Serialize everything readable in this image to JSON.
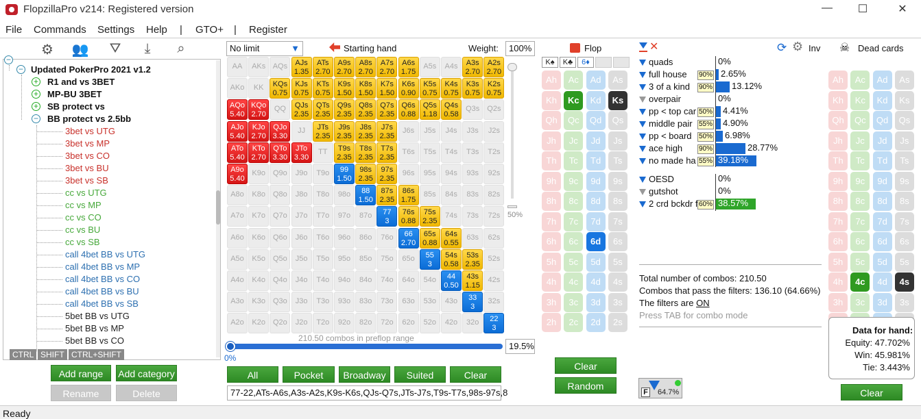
{
  "window": {
    "title": "FlopzillaPro v214: Registered version"
  },
  "menu": [
    "File",
    "Commands",
    "Settings",
    "Help",
    "|",
    "GTO+",
    "|",
    "Register"
  ],
  "tree": {
    "root": "Updated PokerPro 2021 v1.2",
    "groups": [
      "R1 and vs 3BET",
      "MP-BU 3BET",
      "SB protect vs",
      "BB protect vs 2.5bb"
    ],
    "children": [
      {
        "label": "3bet vs UTG",
        "c": "red"
      },
      {
        "label": "3bet vs MP",
        "c": "red"
      },
      {
        "label": "3bet vs CO",
        "c": "red"
      },
      {
        "label": "3bet vs BU",
        "c": "red"
      },
      {
        "label": "3bet vs SB",
        "c": "red"
      },
      {
        "label": "cc vs UTG",
        "c": "grn"
      },
      {
        "label": "cc vs MP",
        "c": "grn"
      },
      {
        "label": "cc vs CO",
        "c": "grn"
      },
      {
        "label": "cc vs BU",
        "c": "grn"
      },
      {
        "label": "cc vs SB",
        "c": "grn"
      },
      {
        "label": "call 4bet BB vs UTG",
        "c": "blu"
      },
      {
        "label": "call 4bet BB vs MP",
        "c": "blu"
      },
      {
        "label": "call 4bet BB vs CO",
        "c": "blu"
      },
      {
        "label": "call 4bet BB vs BU",
        "c": "blu"
      },
      {
        "label": "call 4bet BB vs SB",
        "c": "blu"
      },
      {
        "label": "5bet BB vs UTG",
        "c": "blk"
      },
      {
        "label": "5bet BB vs MP",
        "c": "blk"
      },
      {
        "label": "5bet BB vs CO",
        "c": "blk"
      }
    ],
    "mods": [
      "CTRL",
      "SHIFT",
      "CTRL+SHIFT"
    ]
  },
  "left_buttons": {
    "add_range": "Add range",
    "add_category": "Add category",
    "rename": "Rename",
    "delete": "Delete"
  },
  "range": {
    "limit": "No limit",
    "title": "Starting hand",
    "weight_label": "Weight:",
    "weight": "100%",
    "slider_pct": "50%",
    "combos_text": "210.50 combos in preflop range",
    "pct_left": "0%",
    "pct_box": "19.5%",
    "buttons": [
      "All",
      "Pocket",
      "Broadway",
      "Suited",
      "Clear"
    ],
    "text": "77-22,ATs-A6s,A3s-A2s,K9s-K6s,QJs-Q7s,JTs-J7s,T9s-T7s,98s-97s,8",
    "cells": {
      "AJs": [
        "y",
        "1.35"
      ],
      "ATs": [
        "y",
        "2.70"
      ],
      "A9s": [
        "y",
        "2.70"
      ],
      "A8s": [
        "y",
        "2.70"
      ],
      "A7s": [
        "y",
        "2.70"
      ],
      "A6s": [
        "y",
        "1.75"
      ],
      "A3s": [
        "y",
        "2.70"
      ],
      "A2s": [
        "y",
        "2.70"
      ],
      "KQs": [
        "y",
        "0.75"
      ],
      "KJs": [
        "y",
        "0.75"
      ],
      "KTs": [
        "y",
        "0.75"
      ],
      "K9s": [
        "y",
        "1.50"
      ],
      "K8s": [
        "y",
        "1.50"
      ],
      "K7s": [
        "y",
        "1.50"
      ],
      "K6s": [
        "y",
        "0.90"
      ],
      "K5s": [
        "y",
        "0.75"
      ],
      "K4s": [
        "y",
        "0.75"
      ],
      "K3s": [
        "y",
        "0.75"
      ],
      "K2s": [
        "y",
        "0.75"
      ],
      "AQo": [
        "r",
        "5.40"
      ],
      "KQo": [
        "r",
        "2.70"
      ],
      "QJs": [
        "y",
        "2.35"
      ],
      "QTs": [
        "y",
        "2.35"
      ],
      "Q9s": [
        "y",
        "2.35"
      ],
      "Q8s": [
        "y",
        "2.35"
      ],
      "Q7s": [
        "y",
        "2.35"
      ],
      "Q6s": [
        "y",
        "0.88"
      ],
      "Q5s": [
        "y",
        "1.18"
      ],
      "Q4s": [
        "y",
        "0.58"
      ],
      "AJo": [
        "r",
        "5.40"
      ],
      "KJo": [
        "r",
        "2.70"
      ],
      "QJo": [
        "r",
        "3.30"
      ],
      "JTs": [
        "y",
        "2.35"
      ],
      "J9s": [
        "y",
        "2.35"
      ],
      "J8s": [
        "y",
        "2.35"
      ],
      "J7s": [
        "y",
        "2.35"
      ],
      "ATo": [
        "r",
        "5.40"
      ],
      "KTo": [
        "r",
        "2.70"
      ],
      "QTo": [
        "r",
        "3.30"
      ],
      "JTo": [
        "r",
        "3.30"
      ],
      "T9s": [
        "y",
        "2.35"
      ],
      "T8s": [
        "y",
        "2.35"
      ],
      "T7s": [
        "y",
        "2.35"
      ],
      "A9o": [
        "r",
        "5.40"
      ],
      "99": [
        "b",
        "1.50"
      ],
      "98s": [
        "y",
        "2.35"
      ],
      "97s": [
        "y",
        "2.35"
      ],
      "88": [
        "b",
        "1.50"
      ],
      "87s": [
        "y",
        "2.35"
      ],
      "86s": [
        "y",
        "1.75"
      ],
      "77": [
        "b",
        "3"
      ],
      "76s": [
        "y",
        "0.88"
      ],
      "75s": [
        "y",
        "2.35"
      ],
      "66": [
        "b",
        "2.70"
      ],
      "65s": [
        "y",
        "0.88"
      ],
      "64s": [
        "y",
        "0.55"
      ],
      "55": [
        "b",
        "3"
      ],
      "54s": [
        "y",
        "0.58"
      ],
      "53s": [
        "y",
        "2.35"
      ],
      "44": [
        "b",
        "0.50"
      ],
      "43s": [
        "y",
        "1.15"
      ],
      "33": [
        "b",
        "3"
      ],
      "22": [
        "b",
        "3"
      ]
    }
  },
  "flop": {
    "title": "Flop",
    "board": [
      "K♠",
      "K♣",
      "6♦"
    ],
    "clear": "Clear",
    "random": "Random",
    "selected": [
      "Kc",
      "Ks",
      "6d"
    ]
  },
  "stats": {
    "made": [
      {
        "n": "quads",
        "p": "",
        "v": "0%",
        "bar": 0,
        "icon": "blue"
      },
      {
        "n": "full house",
        "p": "90%",
        "v": "2.65%",
        "bar": 0.0265,
        "icon": "blue"
      },
      {
        "n": "3 of a kind",
        "p": "90%",
        "v": "13.12%",
        "bar": 0.1312,
        "icon": "blue"
      },
      {
        "n": "overpair",
        "p": "",
        "v": "0%",
        "bar": 0,
        "icon": "gray"
      },
      {
        "n": "pp < top car",
        "p": "50%",
        "v": "4.41%",
        "bar": 0.0441,
        "icon": "blue"
      },
      {
        "n": "middle pair",
        "p": "55%",
        "v": "4.90%",
        "bar": 0.049,
        "icon": "blue"
      },
      {
        "n": "pp < board",
        "p": "50%",
        "v": "6.98%",
        "bar": 0.0698,
        "icon": "blue"
      },
      {
        "n": "ace high",
        "p": "90%",
        "v": "28.77%",
        "bar": 0.2877,
        "icon": "blue"
      },
      {
        "n": "no made ha",
        "p": "55%",
        "v": "39.18%",
        "bar": 0.3918,
        "icon": "blue"
      }
    ],
    "draws": [
      {
        "n": "OESD",
        "p": "",
        "v": "0%",
        "bar": 0,
        "icon": "blue"
      },
      {
        "n": "gutshot",
        "p": "",
        "v": "0%",
        "bar": 0,
        "icon": "gray"
      },
      {
        "n": "2 crd bckdr f",
        "p": "60%",
        "v": "38.57%",
        "bar": 0.3857,
        "icon": "blue",
        "g": true
      }
    ],
    "total": "Total number of combos: 210.50",
    "pass": "Combos that pass the filters: 136.10 (64.66%)",
    "filters_prefix": "The filters are ",
    "filters_state": "ON",
    "tab_hint": "Press TAB for combo mode",
    "filter_badge": "64.7%",
    "inv": "Inv"
  },
  "dead": {
    "title": "Dead cards",
    "clear": "Clear",
    "selected": [
      "4c",
      "4s"
    ]
  },
  "equity": {
    "title": "Data for hand:",
    "equity": "Equity: 47.702%",
    "win": "Win: 45.981%",
    "tie": "Tie: 3.443%"
  },
  "status": "Ready"
}
